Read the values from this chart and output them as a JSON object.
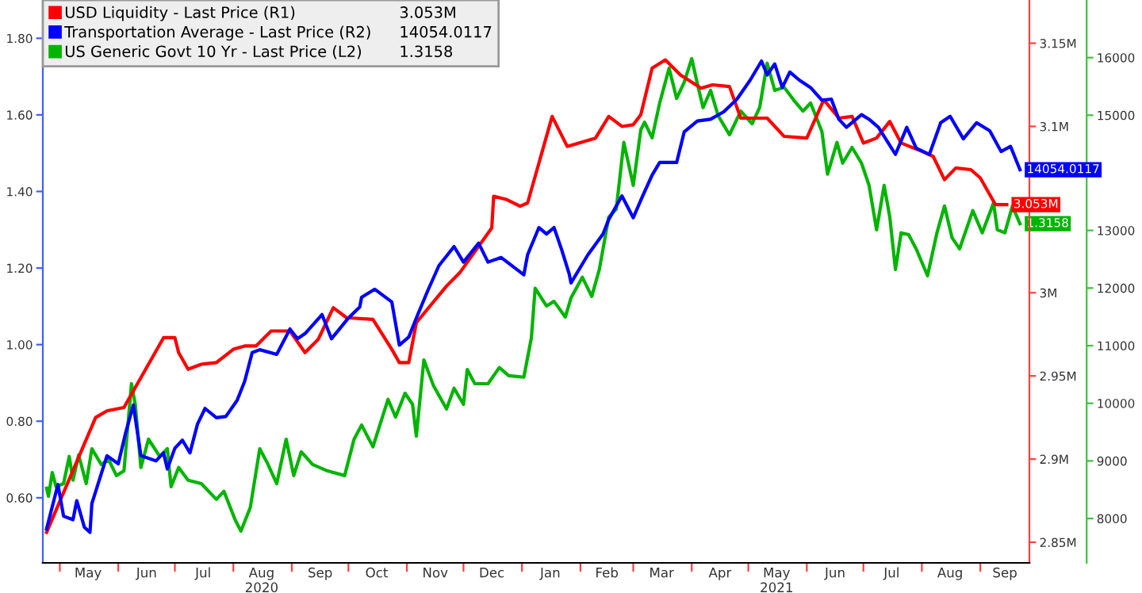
{
  "chart_data": {
    "type": "line",
    "legend": "top left",
    "grid": false,
    "marker": "none",
    "line_style": "solid",
    "xlim": [
      "2020-04-22",
      "2021-09-27"
    ],
    "xticks": [
      {
        "value": "2020-05-01",
        "label": null
      },
      {
        "value": "2020-05-16",
        "label": "May"
      },
      {
        "value": "2020-06-01",
        "label": null
      },
      {
        "value": "2020-06-16",
        "label": "Jun"
      },
      {
        "value": "2020-07-01",
        "label": null
      },
      {
        "value": "2020-07-16",
        "label": "Jul"
      },
      {
        "value": "2020-08-01",
        "label": null
      },
      {
        "value": "2020-08-16",
        "label": "Aug\n2020"
      },
      {
        "value": "2020-09-01",
        "label": null
      },
      {
        "value": "2020-09-16",
        "label": "Sep"
      },
      {
        "value": "2020-10-01",
        "label": null
      },
      {
        "value": "2020-10-16",
        "label": "Oct"
      },
      {
        "value": "2020-11-01",
        "label": null
      },
      {
        "value": "2020-11-16",
        "label": "Nov"
      },
      {
        "value": "2020-12-01",
        "label": null
      },
      {
        "value": "2020-12-16",
        "label": "Dec"
      },
      {
        "value": "2021-01-01",
        "label": null
      },
      {
        "value": "2021-01-16",
        "label": "Jan"
      },
      {
        "value": "2021-02-01",
        "label": null
      },
      {
        "value": "2021-02-15",
        "label": "Feb"
      },
      {
        "value": "2021-03-01",
        "label": null
      },
      {
        "value": "2021-03-16",
        "label": "Mar"
      },
      {
        "value": "2021-04-01",
        "label": null
      },
      {
        "value": "2021-04-16",
        "label": "Apr"
      },
      {
        "value": "2021-05-01",
        "label": null
      },
      {
        "value": "2021-05-16",
        "label": "May\n2021"
      },
      {
        "value": "2021-06-01",
        "label": null
      },
      {
        "value": "2021-06-16",
        "label": "Jun"
      },
      {
        "value": "2021-07-01",
        "label": null
      },
      {
        "value": "2021-07-16",
        "label": "Jul"
      },
      {
        "value": "2021-08-01",
        "label": null
      },
      {
        "value": "2021-08-16",
        "label": "Aug"
      },
      {
        "value": "2021-09-01",
        "label": null
      },
      {
        "value": "2021-09-14",
        "label": "Sep"
      }
    ],
    "ylim": [
      0.43,
      1.9
    ],
    "yticks": [
      {
        "value": 0.6,
        "label": "0.60"
      },
      {
        "value": 0.8,
        "label": "0.80"
      },
      {
        "value": 1.0,
        "label": "1.00"
      },
      {
        "value": 1.2,
        "label": "1.20"
      },
      {
        "value": 1.4,
        "label": "1.40"
      },
      {
        "value": 1.6,
        "label": "1.60"
      },
      {
        "value": 1.8,
        "label": "1.80"
      }
    ],
    "y2lim": [
      2.8376,
      3.176
    ],
    "y2ticks": [
      {
        "value": 2.85,
        "label": "2.85M"
      },
      {
        "value": 2.9,
        "label": "2.9M"
      },
      {
        "value": 2.95,
        "label": "2.95M"
      },
      {
        "value": 3.0,
        "label": "3M"
      },
      {
        "value": 3.1,
        "label": "3.1M"
      },
      {
        "value": 3.15,
        "label": "3.15M"
      }
    ],
    "y3lim": [
      7230,
      17000
    ],
    "y3ticks": [
      8000,
      9000,
      10000,
      11000,
      12000,
      13000,
      15000,
      16000
    ],
    "series": [
      {
        "name": "USD Liquidity - Last Price (R1)",
        "color": "#ff0000",
        "axis": "y2",
        "x": [
          "2020-04-24",
          "2020-05-20",
          "2020-05-26",
          "2020-06-04",
          "2020-06-12",
          "2020-06-25",
          "2020-07-01",
          "2020-07-03",
          "2020-07-08",
          "2020-07-15",
          "2020-07-23",
          "2020-08-01",
          "2020-08-07",
          "2020-08-13",
          "2020-08-21",
          "2020-08-31",
          "2020-09-08",
          "2020-09-15",
          "2020-09-23",
          "2020-09-30",
          "2020-10-14",
          "2020-10-24",
          "2020-10-28",
          "2020-11-02",
          "2020-11-06",
          "2020-11-22",
          "2020-11-29",
          "2020-12-16",
          "2020-12-17",
          "2020-12-24",
          "2020-12-31",
          "2021-01-04",
          "2021-01-17",
          "2021-01-25",
          "2021-02-09",
          "2021-02-16",
          "2021-02-23",
          "2021-03-01",
          "2021-03-05",
          "2021-03-11",
          "2021-03-18",
          "2021-03-26",
          "2021-04-06",
          "2021-04-12",
          "2021-04-21",
          "2021-04-27",
          "2021-05-11",
          "2021-05-20",
          "2021-06-01",
          "2021-06-10",
          "2021-06-18",
          "2021-06-25",
          "2021-07-01",
          "2021-07-08",
          "2021-07-15",
          "2021-07-21",
          "2021-08-01",
          "2021-08-07",
          "2021-08-13",
          "2021-08-19",
          "2021-08-27",
          "2021-09-01",
          "2021-09-09",
          "2021-09-15"
        ],
        "values": [
          2.856,
          2.925,
          2.929,
          2.931,
          2.947,
          2.973,
          2.973,
          2.964,
          2.954,
          2.957,
          2.958,
          2.966,
          2.968,
          2.968,
          2.977,
          2.977,
          2.964,
          2.972,
          2.991,
          2.985,
          2.984,
          2.966,
          2.958,
          2.958,
          2.982,
          3.004,
          3.012,
          3.039,
          3.058,
          3.056,
          3.052,
          3.054,
          3.106,
          3.088,
          3.093,
          3.106,
          3.1,
          3.101,
          3.107,
          3.135,
          3.14,
          3.131,
          3.123,
          3.125,
          3.124,
          3.105,
          3.105,
          3.094,
          3.093,
          3.116,
          3.105,
          3.106,
          3.09,
          3.093,
          3.103,
          3.09,
          3.085,
          3.082,
          3.068,
          3.075,
          3.074,
          3.069,
          3.053,
          3.053
        ],
        "value_labels": [
          null,
          null,
          null,
          null,
          null,
          null,
          null,
          null,
          null,
          null,
          null,
          null,
          null,
          null,
          null,
          null,
          null,
          null,
          null,
          null,
          null,
          null,
          null,
          null,
          null,
          null,
          null,
          null,
          null,
          null,
          null,
          null,
          null,
          null,
          null,
          null,
          null,
          null,
          null,
          null,
          null,
          null,
          null,
          null,
          null,
          null,
          null,
          null,
          null,
          null,
          null,
          null,
          null,
          null,
          null,
          null,
          null,
          null,
          null,
          null,
          null,
          null,
          null,
          "3.053M"
        ]
      },
      {
        "name": "Transportation Average - Last Price (R2)",
        "color": "#0000ff",
        "axis": "y3",
        "x": [
          "2020-04-24",
          "2020-04-30",
          "2020-05-03",
          "2020-05-08",
          "2020-05-10",
          "2020-05-14",
          "2020-05-17",
          "2020-05-18",
          "2020-05-26",
          "2020-06-01",
          "2020-06-05",
          "2020-06-09",
          "2020-06-13",
          "2020-06-21",
          "2020-06-25",
          "2020-06-27",
          "2020-07-01",
          "2020-07-05",
          "2020-07-09",
          "2020-07-13",
          "2020-07-17",
          "2020-07-23",
          "2020-07-28",
          "2020-08-03",
          "2020-08-07",
          "2020-08-11",
          "2020-08-15",
          "2020-08-24",
          "2020-08-31",
          "2020-09-04",
          "2020-09-08",
          "2020-09-17",
          "2020-09-22",
          "2020-10-01",
          "2020-10-07",
          "2020-10-08",
          "2020-10-15",
          "2020-10-24",
          "2020-10-28",
          "2020-11-02",
          "2020-11-06",
          "2020-11-12",
          "2020-11-18",
          "2020-11-26",
          "2020-12-01",
          "2020-12-09",
          "2020-12-14",
          "2020-12-21",
          "2021-01-02",
          "2021-01-04",
          "2021-01-10",
          "2021-01-14",
          "2021-01-18",
          "2021-01-22",
          "2021-01-26",
          "2021-01-27",
          "2021-02-05",
          "2021-02-13",
          "2021-02-16",
          "2021-02-23",
          "2021-03-01",
          "2021-03-06",
          "2021-03-11",
          "2021-03-15",
          "2021-03-24",
          "2021-03-28",
          "2021-04-04",
          "2021-04-11",
          "2021-04-18",
          "2021-04-25",
          "2021-05-02",
          "2021-05-08",
          "2021-05-11",
          "2021-05-15",
          "2021-05-19",
          "2021-05-23",
          "2021-05-28",
          "2021-06-03",
          "2021-06-09",
          "2021-06-14",
          "2021-06-18",
          "2021-06-22",
          "2021-06-30",
          "2021-07-04",
          "2021-07-09",
          "2021-07-18",
          "2021-07-24",
          "2021-07-29",
          "2021-08-05",
          "2021-08-11",
          "2021-08-16",
          "2021-08-23",
          "2021-08-30",
          "2021-09-06",
          "2021-09-12",
          "2021-09-17",
          "2021-09-22"
        ],
        "values": [
          7820,
          8590,
          8040,
          7980,
          8310,
          7850,
          7760,
          8260,
          9090,
          8950,
          9500,
          9970,
          9090,
          9000,
          9140,
          8860,
          9220,
          9360,
          9140,
          9640,
          9910,
          9750,
          9770,
          10050,
          10380,
          10880,
          10930,
          10850,
          11290,
          11120,
          11210,
          11540,
          11120,
          11480,
          11670,
          11840,
          11980,
          11760,
          11010,
          11150,
          11480,
          11950,
          12390,
          12720,
          12450,
          12780,
          12450,
          12530,
          12230,
          12580,
          13050,
          12940,
          13050,
          12670,
          12250,
          12090,
          12580,
          12940,
          13190,
          13600,
          13220,
          13600,
          13960,
          14180,
          14180,
          14710,
          14900,
          14930,
          15060,
          15280,
          15610,
          15940,
          15700,
          15890,
          15480,
          15750,
          15610,
          15480,
          15260,
          15280,
          14930,
          14790,
          15010,
          14930,
          14790,
          14320,
          14790,
          14430,
          14320,
          14870,
          14980,
          14590,
          14870,
          14730,
          14370,
          14460,
          14054.0117
        ],
        "value_labels": [
          null,
          null,
          null,
          null,
          null,
          null,
          null,
          null,
          null,
          null,
          null,
          null,
          null,
          null,
          null,
          null,
          null,
          null,
          null,
          null,
          null,
          null,
          null,
          null,
          null,
          null,
          null,
          null,
          null,
          null,
          null,
          null,
          null,
          null,
          null,
          null,
          null,
          null,
          null,
          null,
          null,
          null,
          null,
          null,
          null,
          null,
          null,
          null,
          null,
          null,
          null,
          null,
          null,
          null,
          null,
          null,
          null,
          null,
          null,
          null,
          null,
          null,
          null,
          null,
          null,
          null,
          null,
          null,
          null,
          null,
          null,
          null,
          null,
          null,
          null,
          null,
          null,
          null,
          null,
          null,
          null,
          null,
          null,
          null,
          null,
          null,
          null,
          null,
          null,
          null,
          null,
          null,
          null,
          null,
          null,
          null,
          "14054.0117"
        ]
      },
      {
        "name": "US Generic Govt 10 Yr - Last Price (L2)",
        "color": "#00b400",
        "axis": "y",
        "x": [
          "2020-04-24",
          "2020-04-25",
          "2020-04-27",
          "2020-04-29",
          "2020-05-03",
          "2020-05-06",
          "2020-05-08",
          "2020-05-11",
          "2020-05-15",
          "2020-05-18",
          "2020-05-23",
          "2020-05-27",
          "2020-05-31",
          "2020-06-04",
          "2020-06-08",
          "2020-06-10",
          "2020-06-13",
          "2020-06-17",
          "2020-06-23",
          "2020-06-27",
          "2020-06-29",
          "2020-07-03",
          "2020-07-08",
          "2020-07-15",
          "2020-07-23",
          "2020-07-27",
          "2020-08-02",
          "2020-08-05",
          "2020-08-10",
          "2020-08-15",
          "2020-08-19",
          "2020-08-24",
          "2020-08-29",
          "2020-09-02",
          "2020-09-06",
          "2020-09-12",
          "2020-09-20",
          "2020-09-29",
          "2020-10-04",
          "2020-10-08",
          "2020-10-14",
          "2020-10-22",
          "2020-10-26",
          "2020-10-31",
          "2020-11-04",
          "2020-11-06",
          "2020-11-10",
          "2020-11-15",
          "2020-11-22",
          "2020-11-26",
          "2020-12-01",
          "2020-12-03",
          "2020-12-07",
          "2020-12-14",
          "2020-12-20",
          "2020-12-25",
          "2021-01-02",
          "2021-01-06",
          "2021-01-08",
          "2021-01-14",
          "2021-01-18",
          "2021-01-24",
          "2021-01-27",
          "2021-02-02",
          "2021-02-07",
          "2021-02-11",
          "2021-02-16",
          "2021-02-20",
          "2021-02-24",
          "2021-03-01",
          "2021-03-05",
          "2021-03-07",
          "2021-03-11",
          "2021-03-15",
          "2021-03-20",
          "2021-03-24",
          "2021-03-28",
          "2021-04-01",
          "2021-04-04",
          "2021-04-07",
          "2021-04-11",
          "2021-04-15",
          "2021-04-21",
          "2021-04-27",
          "2021-05-03",
          "2021-05-07",
          "2021-05-11",
          "2021-05-15",
          "2021-05-20",
          "2021-05-25",
          "2021-05-30",
          "2021-06-03",
          "2021-06-09",
          "2021-06-12",
          "2021-06-17",
          "2021-06-20",
          "2021-06-25",
          "2021-06-30",
          "2021-07-04",
          "2021-07-08",
          "2021-07-12",
          "2021-07-15",
          "2021-07-18",
          "2021-07-21",
          "2021-07-25",
          "2021-07-29",
          "2021-08-04",
          "2021-08-09",
          "2021-08-13",
          "2021-08-17",
          "2021-08-21",
          "2021-08-28",
          "2021-09-02",
          "2021-09-08",
          "2021-09-10",
          "2021-09-14",
          "2021-09-18",
          "2021-09-22"
        ],
        "values": [
          0.625,
          0.604,
          0.666,
          0.629,
          0.637,
          0.708,
          0.646,
          0.712,
          0.637,
          0.728,
          0.687,
          0.699,
          0.658,
          0.67,
          0.898,
          0.844,
          0.679,
          0.753,
          0.708,
          0.728,
          0.629,
          0.679,
          0.646,
          0.637,
          0.596,
          0.617,
          0.542,
          0.513,
          0.575,
          0.728,
          0.691,
          0.637,
          0.753,
          0.658,
          0.72,
          0.687,
          0.67,
          0.658,
          0.753,
          0.79,
          0.733,
          0.857,
          0.811,
          0.873,
          0.844,
          0.761,
          0.96,
          0.894,
          0.832,
          0.886,
          0.844,
          0.935,
          0.898,
          0.898,
          0.94,
          0.919,
          0.915,
          1.018,
          1.147,
          1.101,
          1.113,
          1.072,
          1.122,
          1.176,
          1.126,
          1.196,
          1.333,
          1.354,
          1.528,
          1.416,
          1.561,
          1.581,
          1.54,
          1.631,
          1.722,
          1.643,
          1.685,
          1.747,
          1.681,
          1.619,
          1.664,
          1.598,
          1.548,
          1.61,
          1.577,
          1.619,
          1.735,
          1.664,
          1.672,
          1.639,
          1.61,
          1.631,
          1.557,
          1.445,
          1.528,
          1.474,
          1.515,
          1.474,
          1.416,
          1.3,
          1.416,
          1.333,
          1.196,
          1.292,
          1.287,
          1.25,
          1.18,
          1.292,
          1.362,
          1.279,
          1.25,
          1.35,
          1.292,
          1.37,
          1.3,
          1.292,
          1.362,
          1.3158
        ],
        "value_labels": [
          null,
          null,
          null,
          null,
          null,
          null,
          null,
          null,
          null,
          null,
          null,
          null,
          null,
          null,
          null,
          null,
          null,
          null,
          null,
          null,
          null,
          null,
          null,
          null,
          null,
          null,
          null,
          null,
          null,
          null,
          null,
          null,
          null,
          null,
          null,
          null,
          null,
          null,
          null,
          null,
          null,
          null,
          null,
          null,
          null,
          null,
          null,
          null,
          null,
          null,
          null,
          null,
          null,
          null,
          null,
          null,
          null,
          null,
          null,
          null,
          null,
          null,
          null,
          null,
          null,
          null,
          null,
          null,
          null,
          null,
          null,
          null,
          null,
          null,
          null,
          null,
          null,
          null,
          null,
          null,
          null,
          null,
          null,
          null,
          null,
          null,
          null,
          null,
          null,
          null,
          null,
          null,
          null,
          null,
          null,
          null,
          null,
          null,
          null,
          null,
          null,
          null,
          null,
          null,
          null,
          null,
          null,
          null,
          null,
          null,
          null,
          null,
          null,
          null,
          null,
          null,
          null,
          "1.3158"
        ]
      }
    ]
  }
}
